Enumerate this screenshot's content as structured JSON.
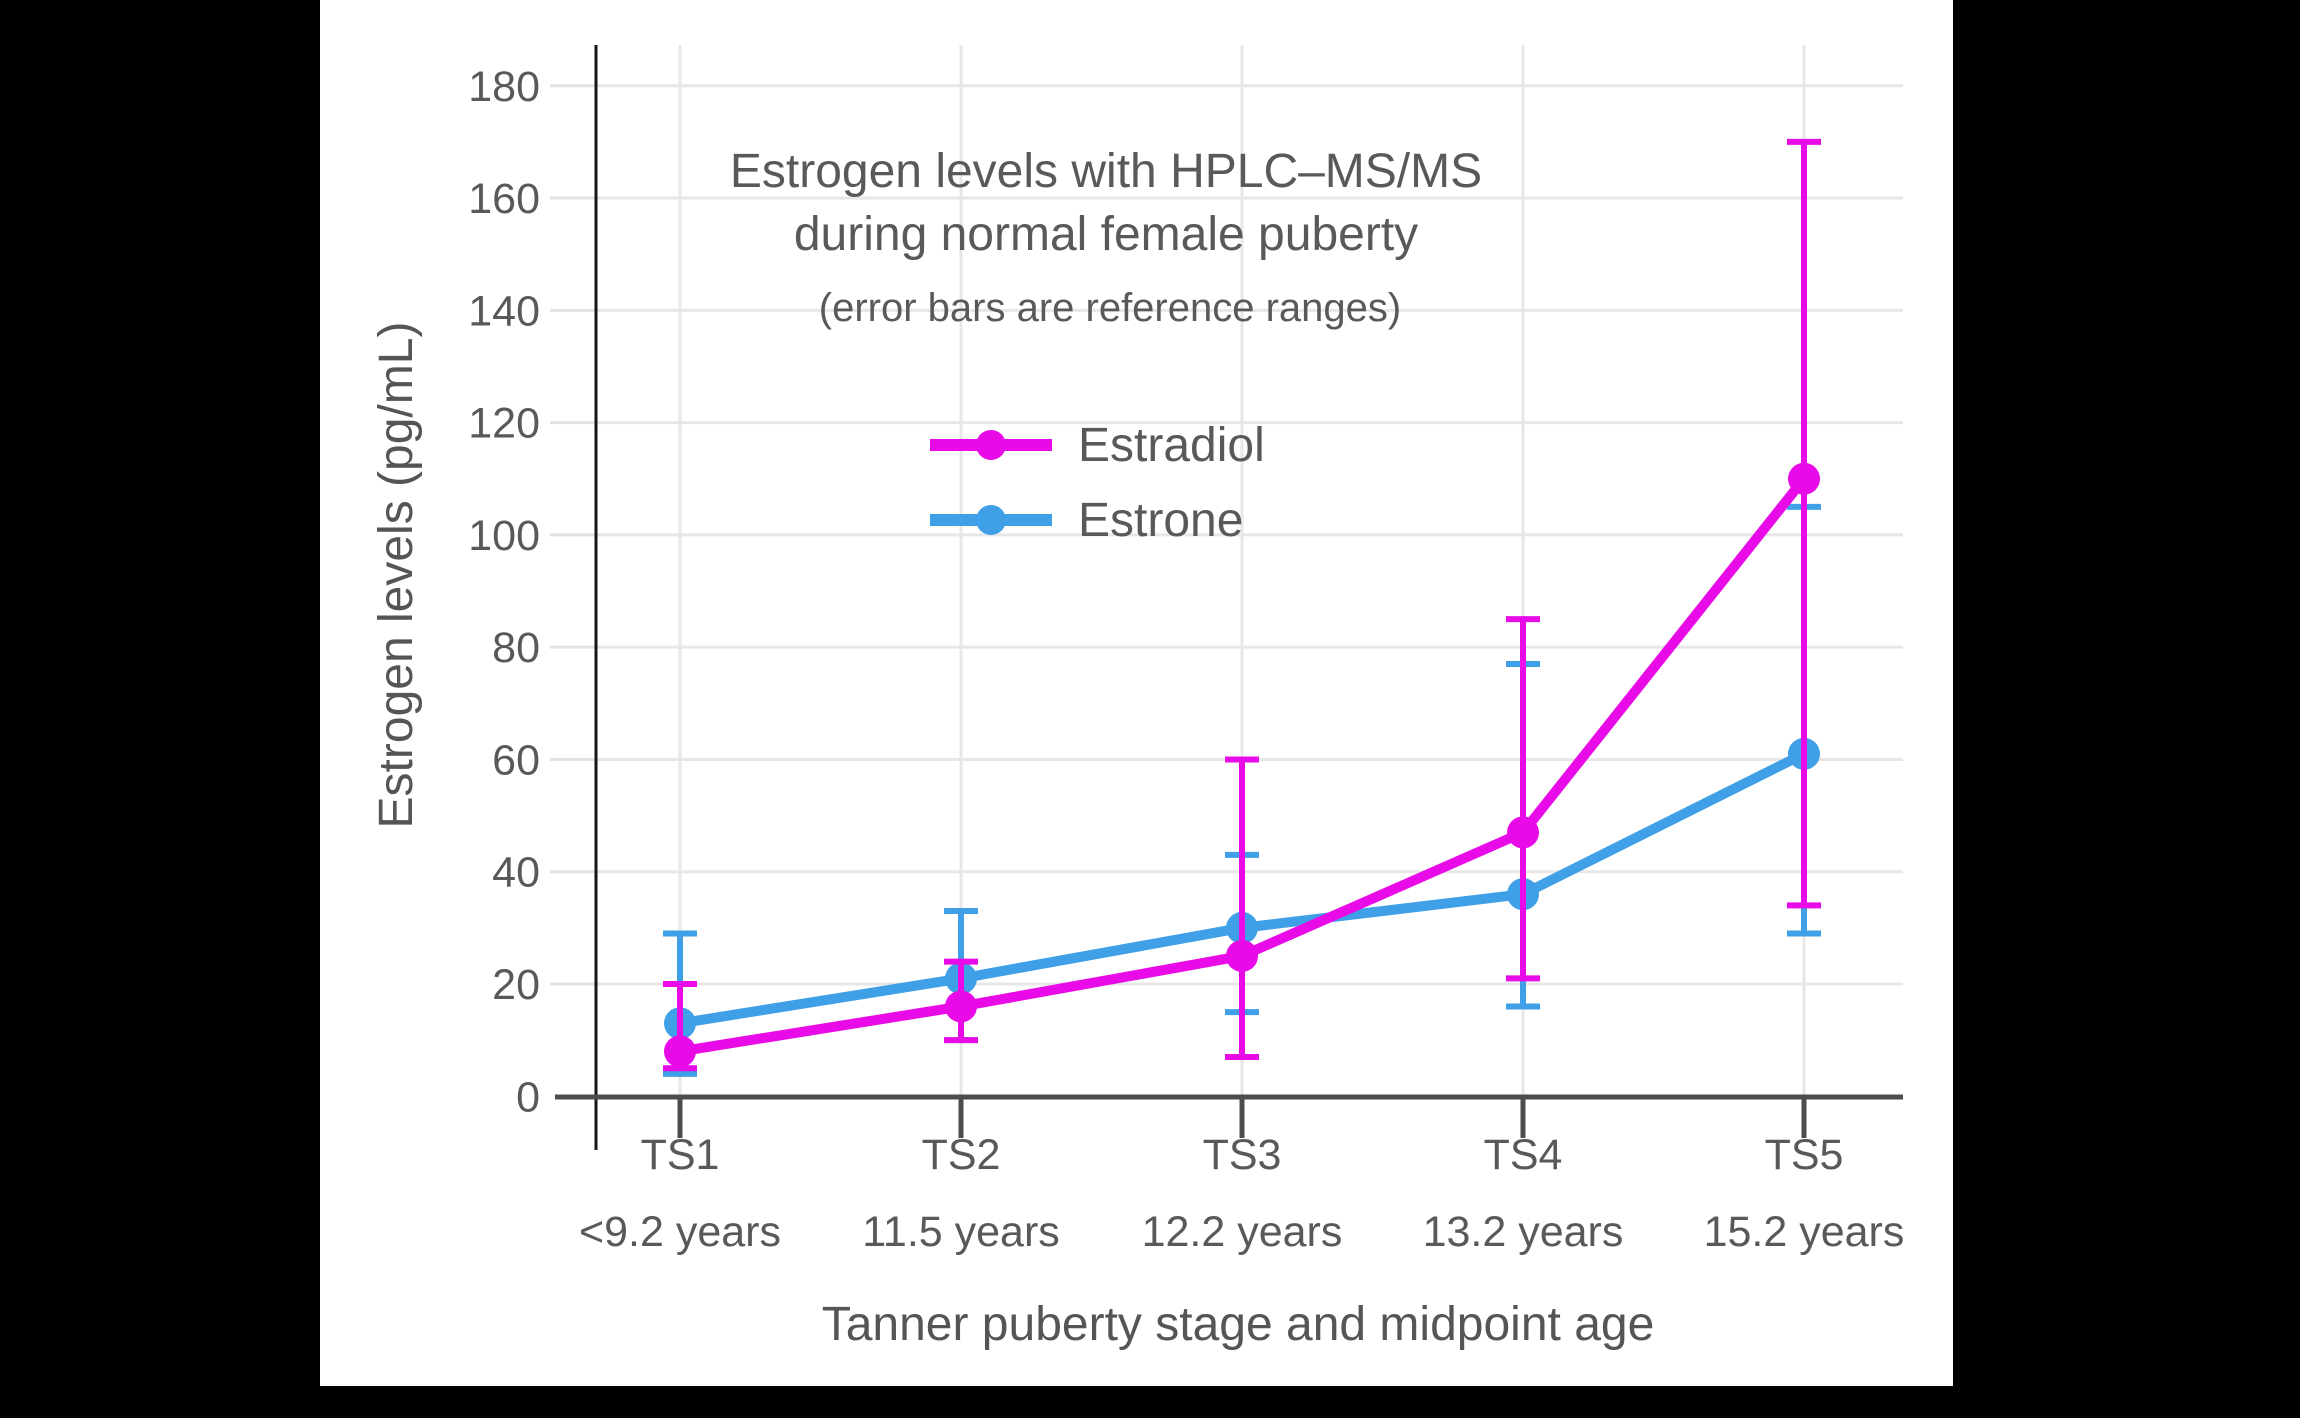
{
  "page": {
    "background_color": "#000000",
    "card_background_color": "#FFFFFF"
  },
  "chart_data": {
    "type": "line",
    "title": "Estrogen levels with HPLC–MS/MS",
    "title_line2": "during normal female puberty",
    "subtitle": "(error bars are reference ranges)",
    "xlabel": "Tanner puberty stage and midpoint age",
    "ylabel": "Estrogen levels (pg/mL)",
    "categories": [
      "TS1",
      "TS2",
      "TS3",
      "TS4",
      "TS5"
    ],
    "category_ages": [
      "<9.2 years",
      "11.5 years",
      "12.2 years",
      "13.2 years",
      "15.2 years"
    ],
    "yticks": [
      0,
      20,
      40,
      60,
      80,
      100,
      120,
      140,
      160,
      180
    ],
    "ylim": [
      0,
      189
    ],
    "grid": true,
    "legend_position": "inside-upper-center",
    "error_bars_meaning": "reference ranges",
    "text_color": "#595959",
    "gridline_color": "#E7E7E7",
    "axis_color": "#4D4D4D",
    "series": [
      {
        "name": "Estradiol",
        "color": "#E80BE8",
        "values": [
          8,
          16,
          25,
          47,
          110
        ],
        "range_low": [
          5,
          10,
          7,
          21,
          34
        ],
        "range_high": [
          20,
          24,
          60,
          85,
          170
        ]
      },
      {
        "name": "Estrone",
        "color": "#3FA0E8",
        "values": [
          13,
          21,
          30,
          36,
          61
        ],
        "range_low": [
          4,
          10,
          15,
          16,
          29
        ],
        "range_high": [
          29,
          33,
          43,
          77,
          105
        ]
      }
    ]
  }
}
